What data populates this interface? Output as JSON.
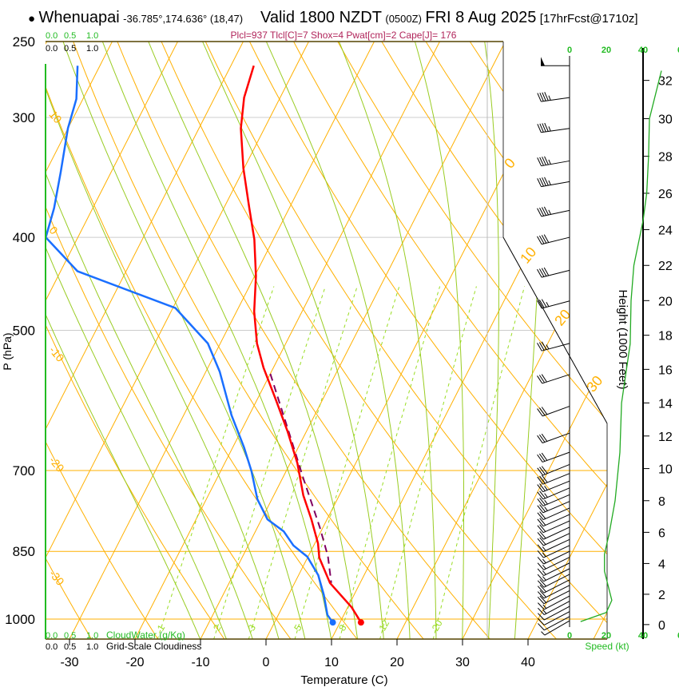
{
  "header": {
    "bullet": "●",
    "station": "Whenuapai",
    "coords": "-36.785°,174.636° (18,47)",
    "valid": "Valid 1800 NZDT",
    "utc": "(0500Z)",
    "date": "FRI 8 Aug 2025",
    "forecast": "[17hrFcst@1710z]",
    "indices": "Plcl=937 Tlcl[C]=7 Shox=4 Pwat[cm]=2 Cape[J]= 176"
  },
  "colors": {
    "temperature": "#ff0000",
    "dewpoint": "#1a6fff",
    "parcel": "#800060",
    "isotherm": "#ffb000",
    "moist_adiabat": "#99cc22",
    "mixing_ratio": "#99dd22",
    "speed": "#22aa22",
    "indices": "#b0245a",
    "scale_green": "#22bb22"
  },
  "scales": {
    "cloud_water_top": [
      "0.0",
      "0.5",
      "1.0"
    ],
    "cloudiness_top": [
      "0.0",
      "0.5",
      "1.0"
    ],
    "cloud_water_bottom": [
      "0.0",
      "0.5",
      "1.0"
    ],
    "cloud_water_label": "CloudWater (g/Kg)",
    "cloudiness_bottom": [
      "0.0",
      "0.5",
      "1.0"
    ],
    "cloudiness_label": "Grid-Scale Cloudiness",
    "speed_ticks": [
      "0",
      "20",
      "40",
      "6"
    ],
    "speed_label": "Speed (kt)"
  },
  "chart_data": {
    "type": "line",
    "title": "Whenuapai Valid 1800 NZDT (0500Z) FRI 8 Aug 2025",
    "xlabel": "Temperature (C)",
    "ylabel": "P (hPa)",
    "y2label": "Height (1000 Feet)",
    "xlim": [
      -34,
      48
    ],
    "ylim": [
      1050,
      250
    ],
    "x_ticks": [
      -30,
      -20,
      -10,
      0,
      10,
      20,
      30,
      40
    ],
    "p_ticks": [
      250,
      300,
      400,
      500,
      700,
      850,
      1000
    ],
    "height_ticks": [
      0,
      2,
      4,
      6,
      8,
      10,
      12,
      14,
      16,
      18,
      20,
      22,
      24,
      26,
      28,
      30,
      32
    ],
    "isotherm_labels_left": [
      "10",
      "0",
      "-10",
      "-20",
      "-30"
    ],
    "isotherm_labels_right": [
      "0",
      "10",
      "20",
      "30"
    ],
    "mixing_ratio_labels": [
      1,
      2,
      3,
      5,
      8,
      12,
      20
    ],
    "series": [
      {
        "name": "temperature",
        "points": [
          [
            265,
            -46.5
          ],
          [
            286,
            -45.5
          ],
          [
            308,
            -43.6
          ],
          [
            339,
            -40.1
          ],
          [
            373,
            -36.1
          ],
          [
            402,
            -32.9
          ],
          [
            439,
            -29.8
          ],
          [
            478,
            -27.3
          ],
          [
            516,
            -24.4
          ],
          [
            547,
            -21.5
          ],
          [
            590,
            -17.2
          ],
          [
            637,
            -12.9
          ],
          [
            688,
            -8.9
          ],
          [
            743,
            -5.5
          ],
          [
            787,
            -2.4
          ],
          [
            834,
            0.5
          ],
          [
            863,
            1.8
          ],
          [
            917,
            5.4
          ],
          [
            972,
            10.6
          ],
          [
            1008,
            13.2
          ]
        ]
      },
      {
        "name": "dewpoint",
        "points": [
          [
            265,
            -73.4
          ],
          [
            287,
            -71.0
          ],
          [
            308,
            -70.0
          ],
          [
            342,
            -67.7
          ],
          [
            373,
            -65.9
          ],
          [
            400,
            -64.9
          ],
          [
            434,
            -57.4
          ],
          [
            474,
            -39.6
          ],
          [
            516,
            -31.9
          ],
          [
            552,
            -27.9
          ],
          [
            613,
            -22.7
          ],
          [
            662,
            -18.3
          ],
          [
            701,
            -15.3
          ],
          [
            750,
            -12.2
          ],
          [
            787,
            -9.1
          ],
          [
            810,
            -5.7
          ],
          [
            838,
            -3.1
          ],
          [
            861,
            -0.1
          ],
          [
            900,
            3.0
          ],
          [
            944,
            5.4
          ],
          [
            990,
            7.5
          ],
          [
            1008,
            8.9
          ]
        ]
      },
      {
        "name": "parcel",
        "points": [
          [
            555,
            -20.0
          ],
          [
            640,
            -12.5
          ],
          [
            715,
            -6.7
          ],
          [
            802,
            -0.5
          ],
          [
            860,
            3.0
          ],
          [
            917,
            5.6
          ]
        ]
      }
    ],
    "surface": {
      "temperature": 13.2,
      "dewpoint": 8.9,
      "pressure": 1008
    },
    "winds": [
      [
        265,
        270,
        50
      ],
      [
        286,
        262,
        45
      ],
      [
        308,
        262,
        45
      ],
      [
        333,
        260,
        45
      ],
      [
        350,
        260,
        45
      ],
      [
        375,
        258,
        45
      ],
      [
        400,
        256,
        40
      ],
      [
        433,
        256,
        40
      ],
      [
        466,
        255,
        35
      ],
      [
        516,
        255,
        35
      ],
      [
        556,
        252,
        30
      ],
      [
        600,
        250,
        30
      ],
      [
        640,
        250,
        30
      ],
      [
        670,
        250,
        30
      ],
      [
        690,
        248,
        30
      ],
      [
        705,
        248,
        30
      ],
      [
        718,
        248,
        25
      ],
      [
        730,
        247,
        25
      ],
      [
        742,
        247,
        25
      ],
      [
        754,
        247,
        25
      ],
      [
        766,
        246,
        20
      ],
      [
        778,
        246,
        20
      ],
      [
        790,
        246,
        20
      ],
      [
        802,
        245,
        20
      ],
      [
        814,
        245,
        20
      ],
      [
        826,
        245,
        15
      ],
      [
        838,
        245,
        15
      ],
      [
        850,
        244,
        15
      ],
      [
        862,
        244,
        15
      ],
      [
        874,
        244,
        15
      ],
      [
        886,
        244,
        15
      ],
      [
        898,
        243,
        20
      ],
      [
        910,
        243,
        20
      ],
      [
        922,
        243,
        20
      ],
      [
        934,
        243,
        20
      ],
      [
        946,
        242,
        15
      ],
      [
        958,
        242,
        15
      ],
      [
        970,
        242,
        10
      ],
      [
        982,
        242,
        10
      ],
      [
        994,
        242,
        10
      ],
      [
        1004,
        240,
        5
      ]
    ],
    "speed_profile": {
      "xlim": [
        0,
        60
      ],
      "points": [
        [
          0.2,
          6
        ],
        [
          0.8,
          20
        ],
        [
          1.6,
          23
        ],
        [
          3.5,
          19
        ],
        [
          4.6,
          19
        ],
        [
          6,
          21.7
        ],
        [
          8,
          24.8
        ],
        [
          11,
          27.4
        ],
        [
          14,
          28.3
        ],
        [
          17.5,
          33
        ],
        [
          20,
          33.5
        ],
        [
          22,
          35
        ],
        [
          24.5,
          40
        ],
        [
          26,
          42
        ],
        [
          28,
          43
        ],
        [
          30,
          43.5
        ],
        [
          32.5,
          50
        ]
      ]
    }
  }
}
